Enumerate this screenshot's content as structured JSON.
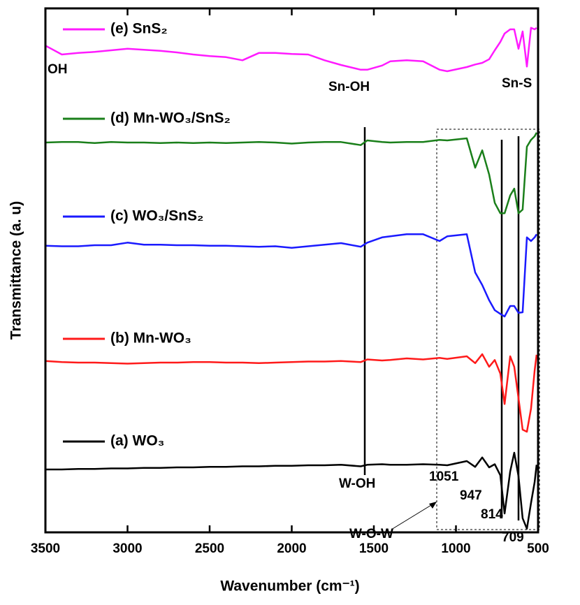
{
  "chart_data": {
    "type": "line",
    "xlabel": "Wavenumber (cm⁻¹)",
    "ylabel": "Transmittance (a. u)",
    "xlim": [
      3500,
      500
    ],
    "xticks": [
      3500,
      3000,
      2500,
      2000,
      1500,
      1000,
      500
    ],
    "ylim": [
      0,
      100
    ],
    "x": [
      3500,
      3400,
      3300,
      3200,
      3100,
      3000,
      2900,
      2800,
      2700,
      2600,
      2500,
      2400,
      2300,
      2200,
      2100,
      2000,
      1900,
      1800,
      1700,
      1580,
      1540,
      1450,
      1400,
      1300,
      1200,
      1100,
      1053,
      934,
      883,
      840,
      798,
      764,
      730,
      704,
      670,
      645,
      619,
      594,
      568,
      543,
      521,
      509
    ],
    "series": [
      {
        "name": "(a) WO₃",
        "color": "#000000",
        "values": [
          12.0,
          12.0,
          12.1,
          12.1,
          12.2,
          12.2,
          12.3,
          12.3,
          12.4,
          12.4,
          12.5,
          12.5,
          12.6,
          12.6,
          12.7,
          12.7,
          12.8,
          12.8,
          12.9,
          12.6,
          12.9,
          13.0,
          12.9,
          12.9,
          13.0,
          12.9,
          12.8,
          13.6,
          12.5,
          14.3,
          12.4,
          13.0,
          10.9,
          3.6,
          11.6,
          15.2,
          10.7,
          2.7,
          0.7,
          5.6,
          9.6,
          12.9
        ]
      },
      {
        "name": "(b) Mn-WO₃",
        "color": "#ff1a1a",
        "values": [
          32.7,
          32.5,
          32.4,
          32.4,
          32.3,
          32.2,
          32.3,
          32.4,
          32.4,
          32.5,
          32.5,
          32.4,
          32.4,
          32.3,
          32.4,
          32.5,
          32.6,
          32.6,
          32.7,
          32.5,
          33.0,
          32.8,
          32.9,
          33.2,
          33.0,
          33.3,
          33.1,
          33.6,
          32.3,
          34.0,
          31.6,
          32.9,
          30.3,
          24.5,
          33.6,
          31.6,
          25.6,
          19.6,
          19.2,
          23.6,
          30.9,
          33.9
        ]
      },
      {
        "name": "(c) WO₃/SnS₂",
        "color": "#1a1aff",
        "values": [
          54.7,
          54.6,
          54.6,
          54.8,
          54.8,
          55.3,
          54.9,
          54.9,
          54.8,
          54.8,
          54.7,
          54.7,
          54.6,
          54.5,
          54.6,
          54.3,
          54.6,
          54.9,
          55.2,
          54.5,
          55.3,
          56.3,
          56.5,
          56.9,
          56.9,
          55.6,
          56.5,
          56.9,
          49.6,
          47.2,
          44.3,
          42.4,
          41.7,
          41.2,
          43.2,
          43.2,
          41.9,
          42.0,
          56.3,
          55.6,
          56.3,
          56.9
        ]
      },
      {
        "name": "(d) Mn-WO₃/SnS₂",
        "color": "#1a7f1a",
        "values": [
          74.4,
          74.5,
          74.5,
          74.3,
          74.5,
          74.4,
          74.4,
          74.3,
          74.4,
          74.3,
          74.4,
          74.3,
          74.4,
          74.5,
          74.4,
          74.2,
          74.4,
          74.5,
          74.5,
          73.9,
          74.8,
          74.5,
          74.4,
          74.5,
          74.5,
          74.9,
          74.8,
          75.2,
          69.6,
          72.9,
          68.3,
          62.9,
          60.9,
          60.9,
          64.3,
          65.6,
          60.9,
          61.6,
          73.6,
          74.9,
          75.6,
          76.3
        ]
      },
      {
        "name": "(e) SnS₂",
        "color": "#ff1aff",
        "values": [
          92.9,
          91.2,
          91.5,
          91.7,
          92.0,
          92.3,
          92.1,
          91.9,
          91.6,
          91.2,
          90.9,
          90.7,
          90.1,
          91.5,
          91.5,
          91.3,
          91.2,
          90.1,
          89.2,
          88.3,
          88.3,
          89.1,
          89.9,
          90.1,
          89.9,
          88.3,
          88.0,
          88.8,
          89.3,
          89.6,
          90.3,
          92.0,
          93.6,
          95.2,
          96.0,
          96.0,
          92.3,
          95.6,
          88.9,
          96.3,
          96.0,
          96.3
        ]
      }
    ],
    "annotations": [
      "OH",
      "Sn-OH",
      "Sn-S",
      "W-OH",
      "1051",
      "947",
      "814",
      "709",
      "W-O-W"
    ]
  }
}
